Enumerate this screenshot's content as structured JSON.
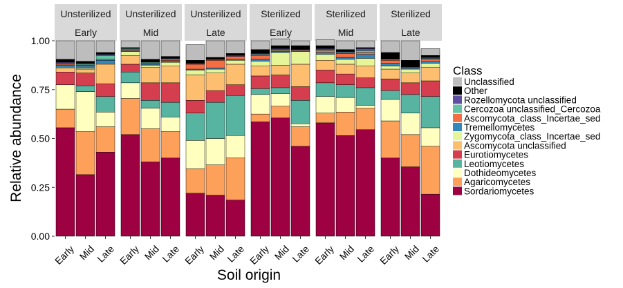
{
  "chart_data": {
    "type": "bar",
    "stacked": true,
    "xlabel": "Soil origin",
    "ylabel": "Relative abundance",
    "ylim": [
      0,
      1
    ],
    "yticks": [
      "0.00",
      "0.25",
      "0.50",
      "0.75",
      "1.00"
    ],
    "categories": [
      "Early",
      "Mid",
      "Late"
    ],
    "legend": {
      "title": "Class",
      "placement": "right",
      "entries": [
        {
          "name": "Unclassified",
          "color": "#bdbdbd"
        },
        {
          "name": "Other",
          "color": "#000000"
        },
        {
          "name": "Rozellomycota unclassified",
          "color": "#5e4fa2"
        },
        {
          "name": "Cercozoa unclassified_Cercozoa",
          "color": "#66c2a5"
        },
        {
          "name": "Ascomycota_class_Incertae_sed",
          "color": "#f46d43"
        },
        {
          "name": "Tremellomycetes",
          "color": "#3288bd"
        },
        {
          "name": "Zygomycota_class_Incertae_sed",
          "color": "#e6f598"
        },
        {
          "name": "Ascomycota unclassified",
          "color": "#fdbf6f"
        },
        {
          "name": "Eurotiomycetes",
          "color": "#d53e4f"
        },
        {
          "name": "Leotiomycetes",
          "color": "#56b4a0"
        },
        {
          "name": "Dothideomycetes",
          "color": "#ffffbf"
        },
        {
          "name": "Agaricomycetes",
          "color": "#fca05a"
        },
        {
          "name": "Sordariomycetes",
          "color": "#9e0142"
        }
      ]
    },
    "stack_order_bottom_to_top": [
      "Sordariomycetes",
      "Agaricomycetes",
      "Dothideomycetes",
      "Leotiomycetes",
      "Eurotiomycetes",
      "Ascomycota unclassified",
      "Zygomycota_class_Incertae_sed",
      "Tremellomycetes",
      "Ascomycota_class_Incertae_sed",
      "Cercozoa unclassified_Cercozoa",
      "Rozellomycota unclassified",
      "Other",
      "Unclassified"
    ],
    "panels": [
      {
        "strip": [
          "Unsterilized",
          "Early"
        ],
        "bars": [
          {
            "category": "Early",
            "values": [
              0.555,
              0.095,
              0.125,
              0.0,
              0.065,
              0.02,
              0.005,
              0.01,
              0.005,
              0.005,
              0.005,
              0.015,
              0.095
            ]
          },
          {
            "category": "Mid",
            "values": [
              0.315,
              0.22,
              0.205,
              0.03,
              0.065,
              0.02,
              0.005,
              0.01,
              0.005,
              0.005,
              0.005,
              0.01,
              0.105
            ]
          },
          {
            "category": "Late",
            "values": [
              0.43,
              0.13,
              0.075,
              0.08,
              0.065,
              0.1,
              0.005,
              0.015,
              0.005,
              0.02,
              0.005,
              0.01,
              0.06
            ]
          }
        ]
      },
      {
        "strip": [
          "Unsterilized",
          "Mid"
        ],
        "bars": [
          {
            "category": "Early",
            "values": [
              0.52,
              0.185,
              0.08,
              0.055,
              0.04,
              0.045,
              0.02,
              0.005,
              0.005,
              0.005,
              0.0,
              0.005,
              0.035
            ]
          },
          {
            "category": "Mid",
            "values": [
              0.38,
              0.17,
              0.105,
              0.04,
              0.09,
              0.08,
              0.01,
              0.005,
              0.005,
              0.005,
              0.0,
              0.015,
              0.095
            ]
          },
          {
            "category": "Late",
            "values": [
              0.4,
              0.135,
              0.075,
              0.075,
              0.1,
              0.085,
              0.02,
              0.005,
              0.005,
              0.005,
              0.005,
              0.01,
              0.08
            ]
          }
        ]
      },
      {
        "strip": [
          "Unsterilized",
          "Late"
        ],
        "bars": [
          {
            "category": "Early",
            "values": [
              0.22,
              0.125,
              0.145,
              0.14,
              0.065,
              0.13,
              0.025,
              0.005,
              0.025,
              0.0,
              0.005,
              0.015,
              0.08
            ]
          },
          {
            "category": "Mid",
            "values": [
              0.21,
              0.155,
              0.135,
              0.185,
              0.06,
              0.09,
              0.02,
              0.005,
              0.04,
              0.0,
              0.005,
              0.01,
              0.085
            ]
          },
          {
            "category": "Late",
            "values": [
              0.185,
              0.215,
              0.115,
              0.205,
              0.055,
              0.105,
              0.02,
              0.005,
              0.015,
              0.0,
              0.005,
              0.01,
              0.065
            ]
          }
        ]
      },
      {
        "strip": [
          "Sterilized",
          "Early"
        ],
        "bars": [
          {
            "category": "Early",
            "values": [
              0.585,
              0.04,
              0.1,
              0.03,
              0.065,
              0.05,
              0.025,
              0.01,
              0.02,
              0.005,
              0.005,
              0.02,
              0.045
            ]
          },
          {
            "category": "Mid",
            "values": [
              0.605,
              0.06,
              0.065,
              0.03,
              0.065,
              0.05,
              0.065,
              0.005,
              0.005,
              0.005,
              0.005,
              0.015,
              0.035
            ]
          },
          {
            "category": "Late",
            "values": [
              0.46,
              0.1,
              0.015,
              0.12,
              0.07,
              0.115,
              0.065,
              0.005,
              0.005,
              0.0,
              0.0,
              0.02,
              0.025
            ]
          }
        ]
      },
      {
        "strip": [
          "Sterilized",
          "Mid"
        ],
        "bars": [
          {
            "category": "Early",
            "values": [
              0.58,
              0.05,
              0.085,
              0.07,
              0.065,
              0.05,
              0.03,
              0.01,
              0.01,
              0.005,
              0.005,
              0.015,
              0.03
            ]
          },
          {
            "category": "Mid",
            "values": [
              0.515,
              0.12,
              0.075,
              0.065,
              0.055,
              0.05,
              0.025,
              0.01,
              0.02,
              0.005,
              0.005,
              0.01,
              0.045
            ]
          },
          {
            "category": "Late",
            "values": [
              0.545,
              0.11,
              0.015,
              0.09,
              0.05,
              0.06,
              0.04,
              0.02,
              0.01,
              0.01,
              0.01,
              0.005,
              0.035
            ]
          }
        ]
      },
      {
        "strip": [
          "Sterilized",
          "Late"
        ],
        "bars": [
          {
            "category": "Early",
            "values": [
              0.4,
              0.19,
              0.11,
              0.045,
              0.06,
              0.05,
              0.015,
              0.015,
              0.015,
              0.005,
              0.0,
              0.035,
              0.06
            ]
          },
          {
            "category": "Mid",
            "values": [
              0.355,
              0.165,
              0.11,
              0.095,
              0.06,
              0.05,
              0.02,
              0.005,
              0.005,
              0.0,
              0.0,
              0.035,
              0.1
            ]
          },
          {
            "category": "Late",
            "values": [
              0.215,
              0.245,
              0.095,
              0.16,
              0.08,
              0.07,
              0.02,
              0.01,
              0.01,
              0.005,
              0.005,
              0.01,
              0.035
            ]
          }
        ]
      }
    ]
  }
}
